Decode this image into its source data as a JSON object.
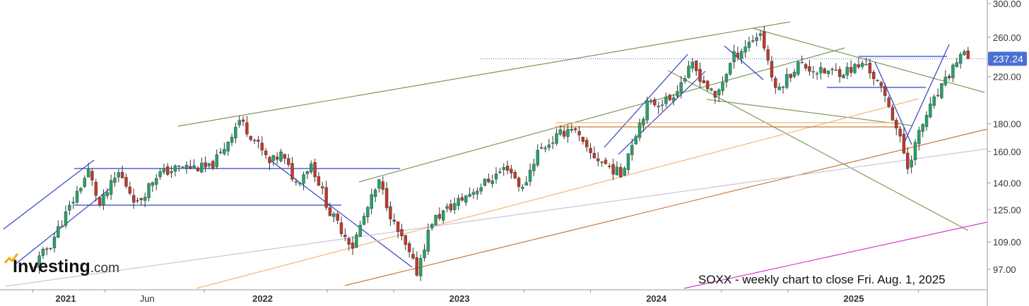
{
  "chart_data": {
    "type": "candlestick",
    "title": "SOXX - weekly chart to close Fri. Aug. 1, 2025",
    "y_scale": "log",
    "ylim": [
      90,
      305
    ],
    "y_ticks": [
      "300.00",
      "260.00",
      "220.00",
      "180.00",
      "160.00",
      "140.00",
      "125.00",
      "109.00",
      "97.00"
    ],
    "x_ticks": [
      "2021",
      "Jun",
      "2022",
      "2023",
      "2024",
      "2025"
    ],
    "last_price": "237.24",
    "watermark": "Investing.com",
    "grid": false,
    "colors": {
      "up": "#26a269",
      "down": "#c0392b",
      "price_tag": "#4a6fd4",
      "trend_green": "#7a9a5a",
      "trend_blue": "#3343c0",
      "trend_orange": "#f4b67a",
      "trend_brown": "#c97a36",
      "trend_lavender": "#c9c3dc",
      "trend_magenta": "#d63ad2",
      "axis": "#999999"
    },
    "price_path": [
      [
        "2020-10-30",
        97
      ],
      [
        "2020-12-04",
        108
      ],
      [
        "2021-01-08",
        126
      ],
      [
        "2021-02-12",
        147
      ],
      [
        "2021-03-05",
        127
      ],
      [
        "2021-04-09",
        146
      ],
      [
        "2021-05-14",
        128
      ],
      [
        "2021-06-18",
        145
      ],
      [
        "2021-08-06",
        150
      ],
      [
        "2021-09-24",
        149
      ],
      [
        "2021-10-15",
        158
      ],
      [
        "2021-11-19",
        183
      ],
      [
        "2021-12-10",
        172
      ],
      [
        "2022-01-14",
        152
      ],
      [
        "2022-02-04",
        158
      ],
      [
        "2022-03-04",
        140
      ],
      [
        "2022-04-01",
        152
      ],
      [
        "2022-05-06",
        123
      ],
      [
        "2022-06-17",
        107
      ],
      [
        "2022-08-05",
        140
      ],
      [
        "2022-09-02",
        117
      ],
      [
        "2022-10-14",
        96
      ],
      [
        "2022-11-11",
        119
      ],
      [
        "2023-01-20",
        134
      ],
      [
        "2023-02-17",
        140
      ],
      [
        "2023-03-31",
        150
      ],
      [
        "2023-04-28",
        136
      ],
      [
        "2023-05-26",
        160
      ],
      [
        "2023-07-28",
        178
      ],
      [
        "2023-08-25",
        160
      ],
      [
        "2023-10-27",
        145
      ],
      [
        "2023-12-15",
        195
      ],
      [
        "2024-01-26",
        200
      ],
      [
        "2024-03-08",
        230
      ],
      [
        "2024-04-19",
        200
      ],
      [
        "2024-05-24",
        240
      ],
      [
        "2024-07-12",
        265
      ],
      [
        "2024-08-09",
        206
      ],
      [
        "2024-09-20",
        232
      ],
      [
        "2024-11-01",
        224
      ],
      [
        "2024-12-13",
        225
      ],
      [
        "2025-01-24",
        232
      ],
      [
        "2025-03-07",
        195
      ],
      [
        "2025-04-11",
        150
      ],
      [
        "2025-05-16",
        187
      ],
      [
        "2025-06-20",
        215
      ],
      [
        "2025-07-18",
        242
      ],
      [
        "2025-08-01",
        237.24
      ]
    ]
  }
}
